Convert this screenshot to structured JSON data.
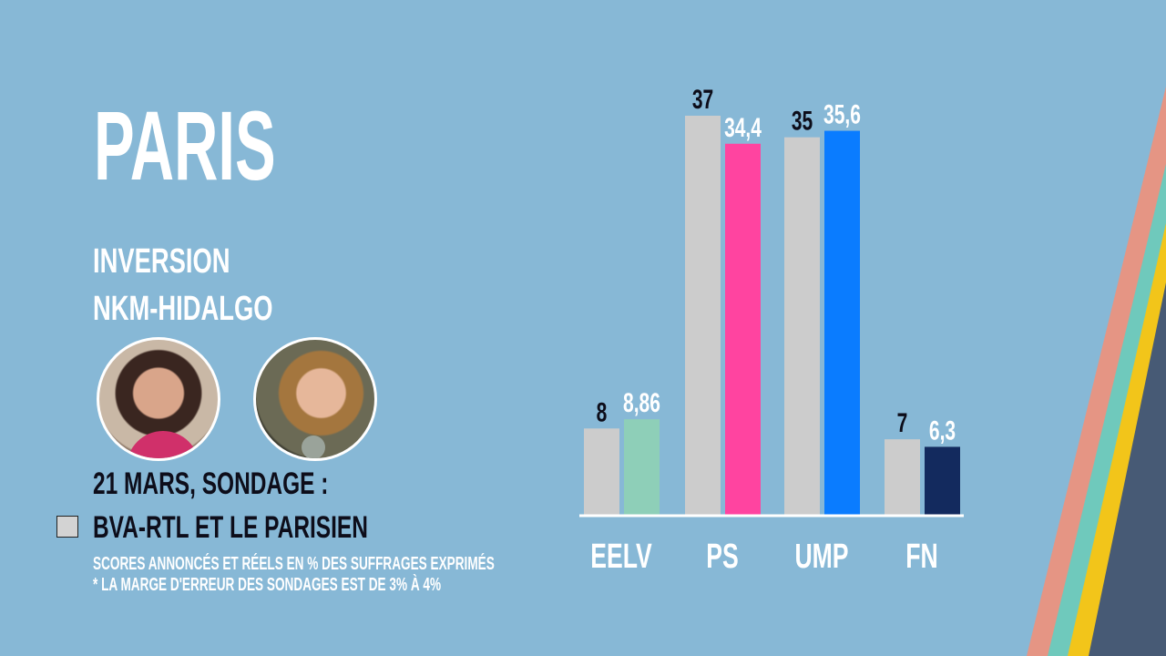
{
  "title": "PARIS",
  "subtitle_lines": [
    "INVERSION",
    "NKM-HIDALGO"
  ],
  "poll_date": "21 MARS, SONDAGE :",
  "legend": {
    "label": "BVA-RTL ET LE PARISIEN",
    "color": "#d3d3d3"
  },
  "notes": [
    "SCORES ANNONCÉS ET RÉELS EN % DES SUFFRAGES EXPRIMÉS",
    "* LA MARGE D'ERREUR DES SONDAGES EST DE 3% À 4%"
  ],
  "chart_data": {
    "type": "bar",
    "categories": [
      "EELV",
      "PS",
      "UMP",
      "FN"
    ],
    "series": [
      {
        "name": "BVA-RTL ET LE PARISIEN",
        "values": [
          8,
          37,
          35,
          7
        ],
        "labels": [
          "8",
          "37",
          "35",
          "7"
        ],
        "colors": [
          "#cccccc",
          "#cccccc",
          "#cccccc",
          "#cccccc"
        ]
      },
      {
        "values": [
          8.86,
          34.4,
          35.6,
          6.3
        ],
        "labels": [
          "8,86",
          "34,4",
          "35,6",
          "6,3"
        ],
        "colors": [
          "#8ecfb8",
          "#ff44a0",
          "#0a7cff",
          "#132a5e"
        ]
      }
    ],
    "ylim": [
      0,
      37
    ],
    "grid": false
  },
  "colors": {
    "background": "#87b8d6",
    "stripes": [
      "#e59584",
      "#6fc9bc",
      "#f2c51a",
      "#475a75"
    ]
  }
}
